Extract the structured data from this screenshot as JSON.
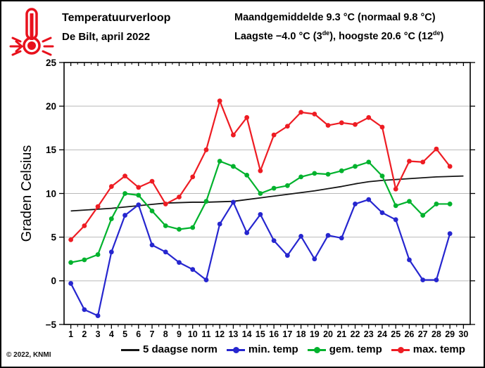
{
  "header": {
    "title": "Temperatuurverloop",
    "subtitle": "De Bilt, april 2022",
    "stats_line1": "Maandgemiddelde 9.3 °C (normaal 9.8 °C)",
    "stats_line2": {
      "p1": "Laagste −4.0 °C (3",
      "sup1": "de",
      "p2": "), hoogste 20.6 °C (12",
      "sup2": "de",
      "p3": ")"
    }
  },
  "icons": {
    "thermometer": "hot-thermometer-icon",
    "color": "#e8111c"
  },
  "footer": {
    "copyright": "© 2022, KNMI"
  },
  "colors": {
    "norm": "#141414",
    "min": "#2626cf",
    "gem": "#00b22d",
    "max": "#ee1c23",
    "grid": "#b9b9b9",
    "axis": "#000000"
  },
  "chart_data": {
    "type": "line",
    "title": "Temperatuurverloop",
    "subtitle": "De Bilt, april 2022",
    "ylabel": "Graden Celsius",
    "xlabel": "",
    "ylim": [
      -5,
      25
    ],
    "yticks": [
      25,
      20,
      15,
      10,
      5,
      0,
      -5
    ],
    "grid": "horizontal",
    "legend_position": "bottom",
    "x": [
      1,
      2,
      3,
      4,
      5,
      6,
      7,
      8,
      9,
      10,
      11,
      12,
      13,
      14,
      15,
      16,
      17,
      18,
      19,
      20,
      21,
      22,
      23,
      24,
      25,
      26,
      27,
      28,
      29,
      30
    ],
    "series": [
      {
        "name": "5 daagse norm",
        "color": "#141414",
        "marker": false,
        "values": [
          8.0,
          8.1,
          8.2,
          8.3,
          8.45,
          8.6,
          8.75,
          8.9,
          8.95,
          9.0,
          9.0,
          9.05,
          9.1,
          9.3,
          9.5,
          9.7,
          9.9,
          10.1,
          10.3,
          10.55,
          10.8,
          11.1,
          11.35,
          11.5,
          11.6,
          11.7,
          11.8,
          11.9,
          11.95,
          12.0
        ]
      },
      {
        "name": "min. temp",
        "color": "#2626cf",
        "marker": true,
        "values": [
          -0.3,
          -3.3,
          -4.0,
          3.3,
          7.5,
          8.7,
          4.1,
          3.3,
          2.1,
          1.3,
          0.1,
          6.5,
          9.0,
          5.5,
          7.6,
          4.6,
          2.9,
          5.1,
          2.5,
          5.2,
          4.9,
          8.8,
          9.3,
          7.8,
          7.0,
          2.4,
          0.1,
          0.1,
          5.4,
          null
        ]
      },
      {
        "name": "gem. temp",
        "color": "#00b22d",
        "marker": true,
        "values": [
          2.1,
          2.4,
          3.0,
          7.1,
          10.0,
          9.8,
          8.0,
          6.3,
          5.9,
          6.1,
          9.1,
          13.7,
          13.1,
          12.1,
          10.0,
          10.6,
          10.9,
          11.9,
          12.3,
          12.2,
          12.6,
          13.1,
          13.6,
          12.0,
          8.6,
          9.1,
          7.5,
          8.8,
          8.8,
          null
        ]
      },
      {
        "name": "max. temp",
        "color": "#ee1c23",
        "marker": true,
        "values": [
          4.7,
          6.3,
          8.5,
          10.8,
          12.0,
          10.7,
          11.4,
          8.8,
          9.6,
          11.9,
          15.0,
          20.6,
          16.7,
          18.7,
          12.6,
          16.7,
          17.7,
          19.3,
          19.1,
          17.8,
          18.1,
          17.9,
          18.7,
          17.6,
          10.5,
          13.7,
          13.6,
          15.1,
          13.1,
          null
        ]
      }
    ]
  }
}
